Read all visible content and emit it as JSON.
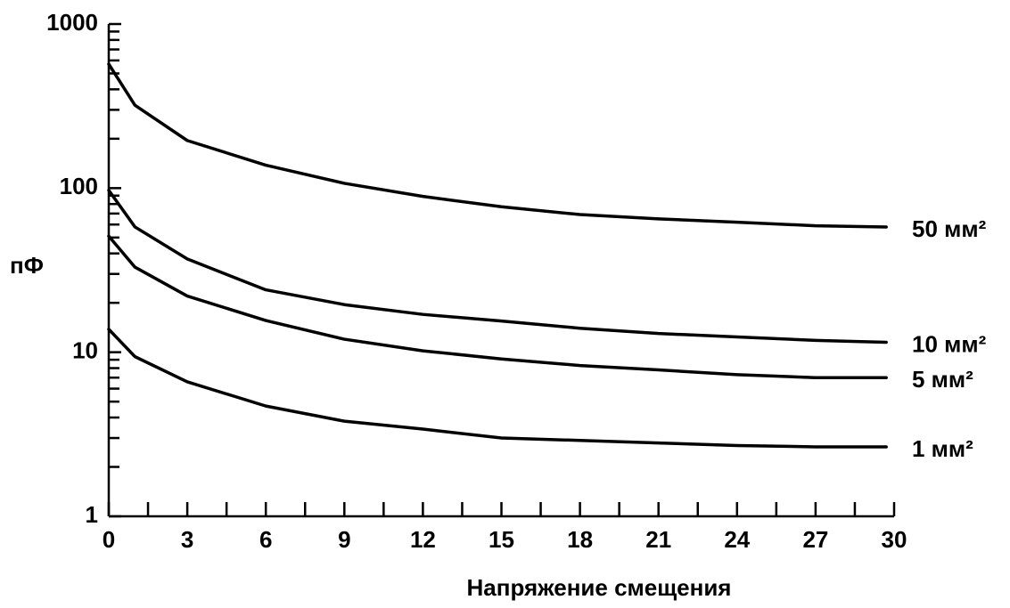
{
  "chart_data": {
    "type": "line",
    "log_y": true,
    "y_label": "пФ",
    "x_label": "Напряжение смещения",
    "x": [
      0,
      1,
      3,
      6,
      9,
      12,
      15,
      18,
      21,
      24,
      27,
      29.7
    ],
    "series": [
      {
        "name": "50 мм²",
        "color": "#000000",
        "values": [
          570,
          320,
          195,
          138,
          107,
          89,
          77,
          69,
          65,
          62,
          59,
          58
        ]
      },
      {
        "name": "10 мм²",
        "color": "#000000",
        "values": [
          97,
          58,
          37,
          24,
          19.5,
          17,
          15.5,
          14,
          13,
          12.4,
          11.8,
          11.5
        ]
      },
      {
        "name": "5 мм²",
        "color": "#000000",
        "values": [
          51,
          33,
          22,
          15.6,
          12,
          10.2,
          9.1,
          8.3,
          7.8,
          7.3,
          7.0,
          7.0
        ]
      },
      {
        "name": "1 мм²",
        "color": "#000000",
        "values": [
          13.8,
          9.4,
          6.6,
          4.7,
          3.8,
          3.4,
          3.0,
          2.9,
          2.8,
          2.7,
          2.65,
          2.65
        ]
      }
    ],
    "xlim": [
      0,
      30
    ],
    "xticks": [
      0,
      3,
      6,
      9,
      12,
      15,
      18,
      21,
      24,
      27,
      30
    ],
    "xminorticks": [
      1.5,
      4.5,
      7.5,
      10.5,
      13.5,
      16.5,
      19.5,
      22.5,
      25.5,
      28.5
    ],
    "ylim": [
      1,
      1000
    ],
    "yticks": [
      1,
      10,
      100,
      1000
    ],
    "yminorticks": [
      2,
      3,
      4,
      5,
      6,
      7,
      8,
      9,
      20,
      30,
      40,
      50,
      60,
      70,
      80,
      90,
      200,
      300,
      400,
      500,
      600,
      700,
      800,
      900
    ]
  }
}
